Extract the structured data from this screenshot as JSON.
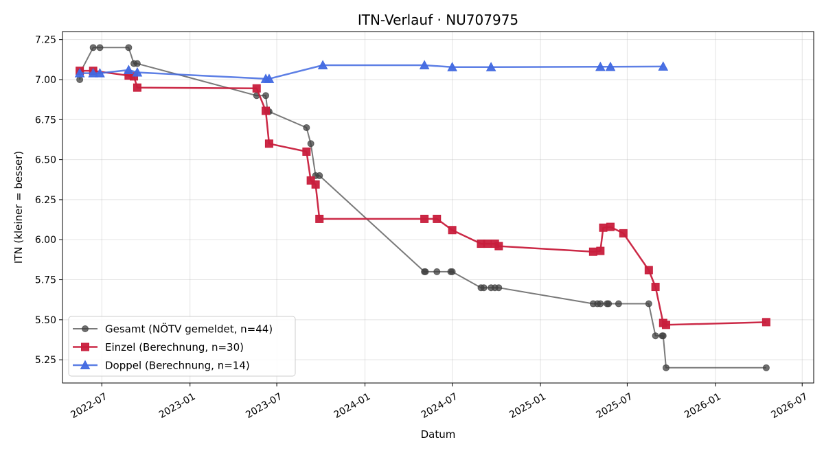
{
  "chart_data": {
    "type": "line",
    "title": "ITN-Verlauf · NU707975",
    "xlabel": "Datum",
    "ylabel": "ITN  (kleiner = besser)",
    "x_axis_type": "date",
    "xlim": [
      "2022-04-10",
      "2026-07-25"
    ],
    "ylim": [
      5.105,
      7.3
    ],
    "x_ticks": [
      {
        "date": "2022-07-01",
        "label": "2022-07"
      },
      {
        "date": "2023-01-01",
        "label": "2023-01"
      },
      {
        "date": "2023-07-01",
        "label": "2023-07"
      },
      {
        "date": "2024-01-01",
        "label": "2024-01"
      },
      {
        "date": "2024-07-01",
        "label": "2024-07"
      },
      {
        "date": "2025-01-01",
        "label": "2025-01"
      },
      {
        "date": "2025-07-01",
        "label": "2025-07"
      },
      {
        "date": "2026-01-01",
        "label": "2026-01"
      },
      {
        "date": "2026-07-01",
        "label": "2026-07"
      }
    ],
    "y_ticks": [
      {
        "value": 5.25,
        "label": "5.25"
      },
      {
        "value": 5.5,
        "label": "5.50"
      },
      {
        "value": 5.75,
        "label": "5.75"
      },
      {
        "value": 6.0,
        "label": "6.00"
      },
      {
        "value": 6.25,
        "label": "6.25"
      },
      {
        "value": 6.5,
        "label": "6.50"
      },
      {
        "value": 6.75,
        "label": "6.75"
      },
      {
        "value": 7.0,
        "label": "7.00"
      },
      {
        "value": 7.25,
        "label": "7.25"
      }
    ],
    "grid": true,
    "legend_position": "lower-left",
    "series": [
      {
        "name": "Gesamt (NÖTV gemeldet, n=44)",
        "color": "#404040",
        "marker": "circle",
        "points": [
          {
            "x": "2022-05-16",
            "y": 7.0
          },
          {
            "x": "2022-05-18",
            "y": 7.05
          },
          {
            "x": "2022-06-13",
            "y": 7.2
          },
          {
            "x": "2022-06-27",
            "y": 7.2
          },
          {
            "x": "2022-08-26",
            "y": 7.2
          },
          {
            "x": "2022-09-06",
            "y": 7.1
          },
          {
            "x": "2022-09-13",
            "y": 7.1
          },
          {
            "x": "2023-05-20",
            "y": 6.9
          },
          {
            "x": "2023-06-08",
            "y": 6.9
          },
          {
            "x": "2023-06-12",
            "y": 6.8
          },
          {
            "x": "2023-06-15",
            "y": 6.8
          },
          {
            "x": "2023-09-01",
            "y": 6.7
          },
          {
            "x": "2023-09-10",
            "y": 6.6
          },
          {
            "x": "2023-09-20",
            "y": 6.4
          },
          {
            "x": "2023-09-28",
            "y": 6.4
          },
          {
            "x": "2024-05-04",
            "y": 5.8
          },
          {
            "x": "2024-05-06",
            "y": 5.8
          },
          {
            "x": "2024-05-30",
            "y": 5.8
          },
          {
            "x": "2024-06-28",
            "y": 5.8
          },
          {
            "x": "2024-07-01",
            "y": 5.8
          },
          {
            "x": "2024-08-30",
            "y": 5.7
          },
          {
            "x": "2024-09-05",
            "y": 5.7
          },
          {
            "x": "2024-09-20",
            "y": 5.7
          },
          {
            "x": "2024-09-28",
            "y": 5.7
          },
          {
            "x": "2024-10-06",
            "y": 5.7
          },
          {
            "x": "2025-04-21",
            "y": 5.6
          },
          {
            "x": "2025-04-30",
            "y": 5.6
          },
          {
            "x": "2025-05-06",
            "y": 5.6
          },
          {
            "x": "2025-05-20",
            "y": 5.6
          },
          {
            "x": "2025-05-23",
            "y": 5.6
          },
          {
            "x": "2025-06-13",
            "y": 5.6
          },
          {
            "x": "2025-08-15",
            "y": 5.6
          },
          {
            "x": "2025-08-29",
            "y": 5.4
          },
          {
            "x": "2025-09-12",
            "y": 5.4
          },
          {
            "x": "2025-09-14",
            "y": 5.4
          },
          {
            "x": "2025-09-20",
            "y": 5.2
          },
          {
            "x": "2026-04-17",
            "y": 5.2
          }
        ]
      },
      {
        "name": "Einzel (Berechnung, n=30)",
        "color": "#c81e3c",
        "marker": "square",
        "points": [
          {
            "x": "2022-05-16",
            "y": 7.055
          },
          {
            "x": "2022-06-13",
            "y": 7.055
          },
          {
            "x": "2022-08-26",
            "y": 7.025
          },
          {
            "x": "2022-09-06",
            "y": 7.02
          },
          {
            "x": "2022-09-13",
            "y": 6.95
          },
          {
            "x": "2023-05-20",
            "y": 6.945
          },
          {
            "x": "2023-06-08",
            "y": 6.805
          },
          {
            "x": "2023-06-15",
            "y": 6.6
          },
          {
            "x": "2023-09-01",
            "y": 6.55
          },
          {
            "x": "2023-09-10",
            "y": 6.37
          },
          {
            "x": "2023-09-20",
            "y": 6.345
          },
          {
            "x": "2023-09-28",
            "y": 6.13
          },
          {
            "x": "2024-05-04",
            "y": 6.13
          },
          {
            "x": "2024-05-30",
            "y": 6.13
          },
          {
            "x": "2024-07-01",
            "y": 6.06
          },
          {
            "x": "2024-08-30",
            "y": 5.975
          },
          {
            "x": "2024-09-12",
            "y": 5.975
          },
          {
            "x": "2024-09-28",
            "y": 5.975
          },
          {
            "x": "2024-10-06",
            "y": 5.96
          },
          {
            "x": "2025-04-21",
            "y": 5.925
          },
          {
            "x": "2025-05-06",
            "y": 5.93
          },
          {
            "x": "2025-05-12",
            "y": 6.075
          },
          {
            "x": "2025-05-27",
            "y": 6.08
          },
          {
            "x": "2025-06-23",
            "y": 6.04
          },
          {
            "x": "2025-08-15",
            "y": 5.81
          },
          {
            "x": "2025-08-29",
            "y": 5.705
          },
          {
            "x": "2025-09-14",
            "y": 5.48
          },
          {
            "x": "2025-09-20",
            "y": 5.468
          },
          {
            "x": "2026-04-17",
            "y": 5.485
          }
        ]
      },
      {
        "name": "Doppel (Berechnung, n=14)",
        "color": "#4169e1",
        "marker": "triangle",
        "points": [
          {
            "x": "2022-05-16",
            "y": 7.04
          },
          {
            "x": "2022-06-13",
            "y": 7.04
          },
          {
            "x": "2022-06-27",
            "y": 7.04
          },
          {
            "x": "2022-08-26",
            "y": 7.06
          },
          {
            "x": "2022-09-13",
            "y": 7.045
          },
          {
            "x": "2023-06-08",
            "y": 7.005
          },
          {
            "x": "2023-06-15",
            "y": 7.005
          },
          {
            "x": "2023-10-05",
            "y": 7.09
          },
          {
            "x": "2024-05-04",
            "y": 7.09
          },
          {
            "x": "2024-07-01",
            "y": 7.078
          },
          {
            "x": "2024-09-20",
            "y": 7.078
          },
          {
            "x": "2025-05-06",
            "y": 7.08
          },
          {
            "x": "2025-05-27",
            "y": 7.08
          },
          {
            "x": "2025-09-14",
            "y": 7.082
          }
        ]
      }
    ]
  }
}
